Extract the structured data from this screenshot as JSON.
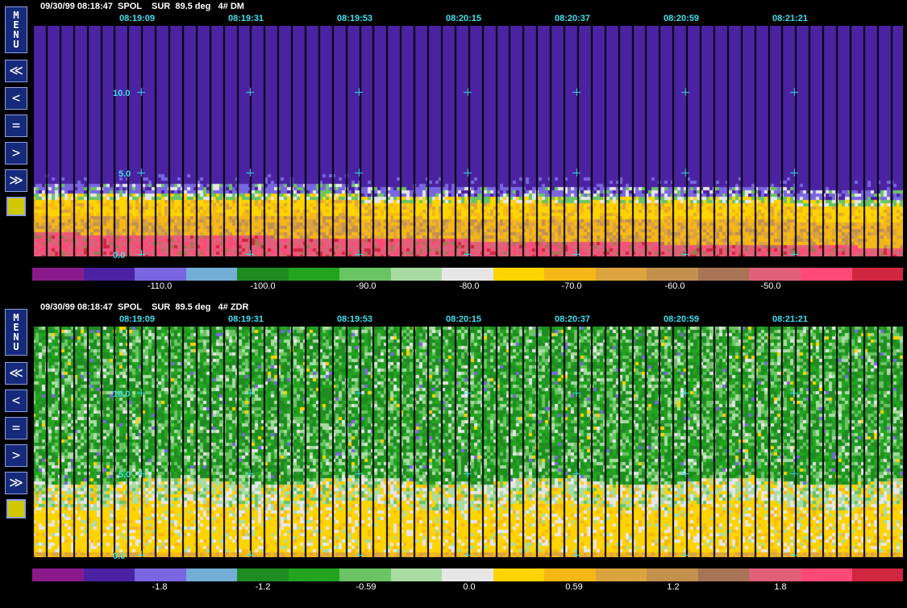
{
  "palette": [
    "#8a1a8c",
    "#4b22a2",
    "#7a66e0",
    "#73aed6",
    "#1f8c22",
    "#22a41f",
    "#6ac464",
    "#a9dca2",
    "#e6e6e6",
    "#ffd400",
    "#f5b816",
    "#dca43e",
    "#c4904e",
    "#a87456",
    "#e0607a",
    "#ff4a78",
    "#d02640"
  ],
  "sidebar": {
    "menu_letters": [
      "M",
      "E",
      "N",
      "U"
    ],
    "fast_back": "≪",
    "back": "<",
    "equal": "=",
    "forward": ">",
    "fast_forward": "≫",
    "swatch_color": "#d0c800"
  },
  "panels": [
    {
      "header": "09/30/99 08:18:47  SPOL    SUR  89.5 deg   4# DM",
      "times": [
        "08:19:09",
        "08:19:31",
        "08:19:53",
        "08:20:15",
        "08:20:37",
        "08:20:59",
        "08:21:21"
      ],
      "altitudes": [
        "10.0",
        "5.0",
        "0.0"
      ],
      "scale_labels": [
        "-110.0",
        "-100.0",
        "-90.0",
        "-80.0",
        "-70.0",
        "-60.0",
        "-50.0"
      ],
      "field": "DM"
    },
    {
      "header": "09/30/99 08:18:47  SPOL    SUR  89.5 deg   4# ZDR",
      "times": [
        "08:19:09",
        "08:19:31",
        "08:19:53",
        "08:20:15",
        "08:20:37",
        "08:20:59",
        "08:21:21"
      ],
      "altitudes": [
        "10.0",
        "5.0",
        "0.0"
      ],
      "scale_labels": [
        "-1.8",
        "-1.2",
        "-0.59",
        "0.0",
        "0.59",
        "1.2",
        "1.8"
      ],
      "field": "ZDR"
    }
  ]
}
